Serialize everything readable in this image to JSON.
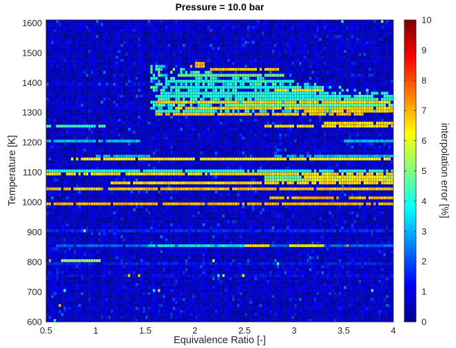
{
  "chart_data": {
    "type": "heatmap",
    "title": "Pressure = 10.0 bar",
    "xlabel": "Equivalence Ratio [-]",
    "ylabel": "Temperature [K]",
    "colorbar_label": "interpolation error [%]",
    "colormap": "jet",
    "xlim": [
      0.5,
      4
    ],
    "ylim": [
      600,
      1610
    ],
    "clim": [
      0,
      10
    ],
    "grid_resolution": {
      "x_step": 0.025,
      "y_step": 10
    },
    "x_ticks": [
      0.5,
      1,
      1.5,
      2,
      2.5,
      3,
      3.5,
      4
    ],
    "x_tick_labels": [
      "0.5",
      "1",
      "1.5",
      "2",
      "2.5",
      "3",
      "3.5",
      "4"
    ],
    "y_ticks": [
      600,
      700,
      800,
      900,
      1000,
      1100,
      1200,
      1300,
      1400,
      1500,
      1600
    ],
    "y_tick_labels": [
      "600",
      "700",
      "800",
      "900",
      "1000",
      "1100",
      "1200",
      "1300",
      "1400",
      "1500",
      "1600"
    ],
    "colorbar_ticks": [
      0,
      1,
      2,
      3,
      4,
      5,
      6,
      7,
      8,
      9,
      10
    ],
    "colorbar_tick_labels": [
      "0",
      "1",
      "2",
      "3",
      "4",
      "5",
      "6",
      "7",
      "8",
      "9",
      "10"
    ],
    "background_error_percent": 0.4,
    "bands": [
      {
        "T": 1250,
        "x": [
          0.5,
          1.1
        ],
        "err": 4.2
      },
      {
        "T": 1250,
        "x": [
          2.7,
          4.0
        ],
        "err": 6.5
      },
      {
        "T": 1260,
        "x": [
          3.3,
          4.0
        ],
        "err": 6.6
      },
      {
        "T": 1200,
        "x": [
          0.5,
          1.45
        ],
        "err": 3.0
      },
      {
        "T": 1200,
        "x": [
          3.5,
          4.0
        ],
        "err": 3.0
      },
      {
        "T": 1150,
        "x": [
          1.0,
          1.55
        ],
        "err": 3.0
      },
      {
        "T": 1150,
        "x": [
          2.8,
          4.0
        ],
        "err": 3.0
      },
      {
        "T": 1140,
        "x": [
          0.75,
          4.0
        ],
        "err": 6.3
      },
      {
        "T": 1100,
        "x": [
          0.5,
          4.0
        ],
        "err": 4.0
      },
      {
        "T": 1090,
        "x": [
          0.5,
          4.0
        ],
        "err": 6.6
      },
      {
        "T": 1080,
        "x": [
          2.7,
          4.0
        ],
        "err": 4.6
      },
      {
        "T": 1080,
        "x": [
          3.1,
          4.0
        ],
        "err": 6.3
      },
      {
        "T": 1070,
        "x": [
          2.7,
          4.0
        ],
        "err": 5.1
      },
      {
        "T": 1070,
        "x": [
          3.1,
          4.0
        ],
        "err": 6.4
      },
      {
        "T": 1060,
        "x": [
          1.15,
          4.0
        ],
        "err": 6.6
      },
      {
        "T": 1040,
        "x": [
          0.5,
          4.0
        ],
        "err": 6.8
      },
      {
        "T": 1010,
        "x": [
          2.7,
          3.45
        ],
        "err": 7.0
      },
      {
        "T": 1010,
        "x": [
          3.55,
          4.0
        ],
        "err": 6.8
      },
      {
        "T": 990,
        "x": [
          0.5,
          4.0
        ],
        "err": 6.9
      },
      {
        "T": 900,
        "x": [
          0.5,
          4.0
        ],
        "err": 1.6
      },
      {
        "T": 850,
        "x": [
          0.6,
          4.0
        ],
        "err": 2.2
      },
      {
        "T": 850,
        "x": [
          1.5,
          2.5
        ],
        "err": 3.6
      },
      {
        "T": 850,
        "x": [
          2.5,
          2.75
        ],
        "err": 6.5
      },
      {
        "T": 850,
        "x": [
          2.95,
          3.3
        ],
        "err": 6.3
      },
      {
        "T": 800,
        "x": [
          0.65,
          1.05
        ],
        "err": 5.2
      },
      {
        "T": 790,
        "x": [
          0.5,
          4.0
        ],
        "err": 1.5
      },
      {
        "T": 750,
        "x": [
          0.5,
          4.0
        ],
        "err": 1.3
      }
    ],
    "hot_region": {
      "x": [
        1.55,
        4.0
      ],
      "T": [
        1300,
        1470
      ],
      "err_core": 4.0,
      "err_edge": 6.8
    },
    "hot_rows": [
      {
        "T": 1460,
        "x": [
          2.0,
          2.1
        ],
        "err": 6.8
      },
      {
        "T": 1450,
        "x": [
          1.95,
          2.1
        ],
        "err": 6.8
      },
      {
        "T": 1440,
        "x": [
          2.15,
          2.85
        ],
        "err": 6.7
      },
      {
        "T": 1420,
        "x": [
          1.85,
          2.9
        ],
        "err": 4.8
      },
      {
        "T": 1400,
        "x": [
          1.7,
          3.0
        ],
        "err": 4.0
      },
      {
        "T": 1380,
        "x": [
          1.75,
          3.1
        ],
        "err": 4.0
      },
      {
        "T": 1370,
        "x": [
          2.8,
          3.3
        ],
        "err": 6.4
      },
      {
        "T": 1360,
        "x": [
          1.8,
          3.35
        ],
        "err": 4.0
      },
      {
        "T": 1350,
        "x": [
          1.6,
          3.6
        ],
        "err": 4.0
      },
      {
        "T": 1340,
        "x": [
          2.4,
          4.0
        ],
        "err": 4.2
      },
      {
        "T": 1330,
        "x": [
          1.6,
          4.0
        ],
        "err": 6.6
      },
      {
        "T": 1320,
        "x": [
          2.3,
          4.0
        ],
        "err": 4.8
      },
      {
        "T": 1310,
        "x": [
          1.8,
          4.0
        ],
        "err": 6.6
      },
      {
        "T": 1300,
        "x": [
          1.6,
          2.2
        ],
        "err": 4.3
      },
      {
        "T": 1300,
        "x": [
          3.1,
          4.0
        ],
        "err": 6.6
      },
      {
        "T": 1290,
        "x": [
          1.6,
          3.7
        ],
        "err": 6.8
      }
    ],
    "spots": [
      {
        "x": 0.575,
        "T": 600,
        "err": 4.0
      },
      {
        "x": 0.625,
        "T": 650,
        "err": 7.0
      },
      {
        "x": 0.675,
        "T": 700,
        "err": 4.3
      },
      {
        "x": 0.875,
        "T": 900,
        "err": 4.8
      },
      {
        "x": 1.325,
        "T": 750,
        "err": 6.8
      },
      {
        "x": 1.425,
        "T": 750,
        "err": 6.8
      },
      {
        "x": 1.575,
        "T": 700,
        "err": 3.5
      },
      {
        "x": 1.625,
        "T": 700,
        "err": 6.7
      },
      {
        "x": 2.225,
        "T": 750,
        "err": 4.0
      },
      {
        "x": 2.275,
        "T": 750,
        "err": 5.0
      },
      {
        "x": 2.475,
        "T": 750,
        "err": 6.0
      },
      {
        "x": 2.825,
        "T": 790,
        "err": 4.5
      },
      {
        "x": 3.525,
        "T": 850,
        "err": 7.3
      },
      {
        "x": 3.775,
        "T": 700,
        "err": 4.0
      },
      {
        "x": 2.175,
        "T": 800,
        "err": 6.2
      },
      {
        "x": 3.475,
        "T": 1600,
        "err": 4.2
      },
      {
        "x": 3.875,
        "T": 1600,
        "err": 5.2
      },
      {
        "x": 0.525,
        "T": 800,
        "err": 7.2
      }
    ]
  }
}
